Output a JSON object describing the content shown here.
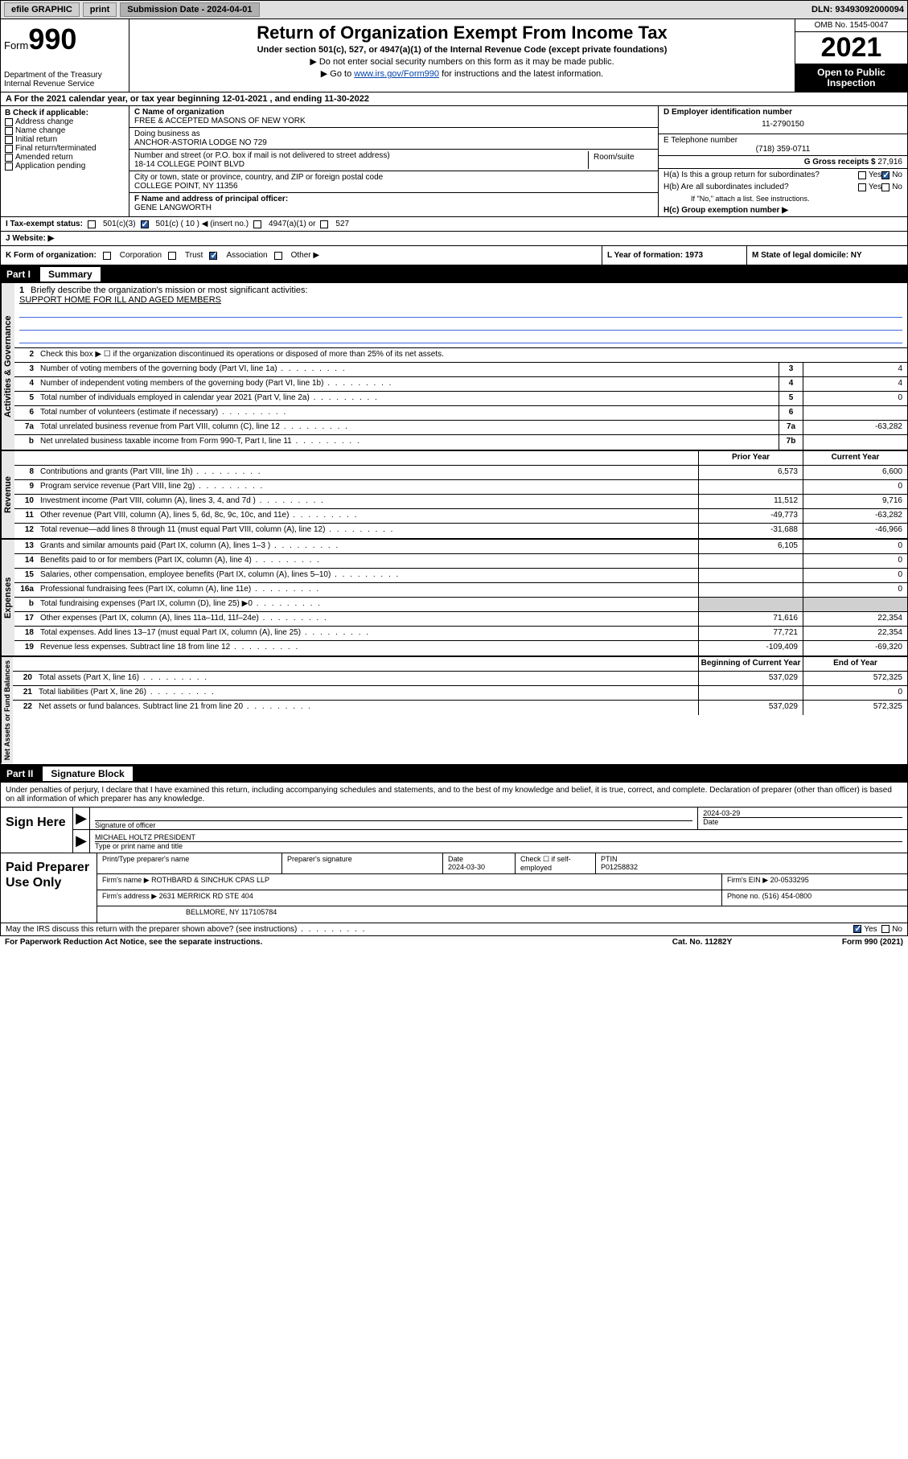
{
  "topbar": {
    "efile": "efile GRAPHIC",
    "print": "print",
    "submission_label": "Submission Date - 2024-04-01",
    "dln": "DLN: 93493092000094"
  },
  "header": {
    "form_label": "Form",
    "form_number": "990",
    "dept": "Department of the Treasury",
    "irs": "Internal Revenue Service",
    "title": "Return of Organization Exempt From Income Tax",
    "subtitle": "Under section 501(c), 527, or 4947(a)(1) of the Internal Revenue Code (except private foundations)",
    "note1": "▶ Do not enter social security numbers on this form as it may be made public.",
    "note2_pre": "▶ Go to ",
    "note2_link": "www.irs.gov/Form990",
    "note2_post": " for instructions and the latest information.",
    "omb": "OMB No. 1545-0047",
    "year": "2021",
    "open": "Open to Public Inspection"
  },
  "row_a": "A For the 2021 calendar year, or tax year beginning 12-01-2021   , and ending 11-30-2022",
  "col_b": {
    "label": "B Check if applicable:",
    "opts": [
      "Address change",
      "Name change",
      "Initial return",
      "Final return/terminated",
      "Amended return",
      "Application pending"
    ]
  },
  "col_c": {
    "name_label": "C Name of organization",
    "name": "FREE & ACCEPTED MASONS OF NEW YORK",
    "dba_label": "Doing business as",
    "dba": "ANCHOR-ASTORIA LODGE NO 729",
    "street_label": "Number and street (or P.O. box if mail is not delivered to street address)",
    "room_label": "Room/suite",
    "street": "18-14 COLLEGE POINT BLVD",
    "city_label": "City or town, state or province, country, and ZIP or foreign postal code",
    "city": "COLLEGE POINT, NY  11356"
  },
  "col_d": {
    "ein_label": "D Employer identification number",
    "ein": "11-2790150",
    "phone_label": "E Telephone number",
    "phone": "(718) 359-0711",
    "gross_label": "G Gross receipts $",
    "gross": "27,916"
  },
  "row_f": {
    "label": "F  Name and address of principal officer:",
    "name": "GENE LANGWORTH"
  },
  "row_h": {
    "ha": "H(a)  Is this a group return for subordinates?",
    "hb": "H(b)  Are all subordinates included?",
    "hb_note": "If \"No,\" attach a list. See instructions.",
    "hc": "H(c)  Group exemption number ▶",
    "yes": "Yes",
    "no": "No"
  },
  "row_i": {
    "label": "I    Tax-exempt status:",
    "opt1": "501(c)(3)",
    "opt2": "501(c) ( 10 ) ◀ (insert no.)",
    "opt3": "4947(a)(1) or",
    "opt4": "527"
  },
  "row_j": {
    "label": "J   Website: ▶"
  },
  "row_k": {
    "label": "K Form of organization:",
    "corp": "Corporation",
    "trust": "Trust",
    "assoc": "Association",
    "other": "Other ▶",
    "year_label": "L Year of formation: 1973",
    "state_label": "M State of legal domicile: NY"
  },
  "part1": {
    "label": "Part I",
    "title": "Summary"
  },
  "summary": {
    "sections": {
      "gov": "Activities & Governance",
      "rev": "Revenue",
      "exp": "Expenses",
      "net": "Net Assets or Fund Balances"
    },
    "q1": "Briefly describe the organization's mission or most significant activities:",
    "mission": "SUPPORT HOME FOR ILL AND AGED MEMBERS",
    "q2": "Check this box ▶ ☐  if the organization discontinued its operations or disposed of more than 25% of its net assets.",
    "rows": [
      {
        "n": "3",
        "t": "Number of voting members of the governing body (Part VI, line 1a)",
        "box": "3",
        "v": "4"
      },
      {
        "n": "4",
        "t": "Number of independent voting members of the governing body (Part VI, line 1b)",
        "box": "4",
        "v": "4"
      },
      {
        "n": "5",
        "t": "Total number of individuals employed in calendar year 2021 (Part V, line 2a)",
        "box": "5",
        "v": "0"
      },
      {
        "n": "6",
        "t": "Total number of volunteers (estimate if necessary)",
        "box": "6",
        "v": ""
      },
      {
        "n": "7a",
        "t": "Total unrelated business revenue from Part VIII, column (C), line 12",
        "box": "7a",
        "v": "-63,282"
      },
      {
        "n": "b",
        "t": "Net unrelated business taxable income from Form 990-T, Part I, line 11",
        "box": "7b",
        "v": ""
      }
    ],
    "col_headers": {
      "prior": "Prior Year",
      "current": "Current Year",
      "begin": "Beginning of Current Year",
      "end": "End of Year"
    },
    "rev_rows": [
      {
        "n": "8",
        "t": "Contributions and grants (Part VIII, line 1h)",
        "p": "6,573",
        "c": "6,600"
      },
      {
        "n": "9",
        "t": "Program service revenue (Part VIII, line 2g)",
        "p": "",
        "c": "0"
      },
      {
        "n": "10",
        "t": "Investment income (Part VIII, column (A), lines 3, 4, and 7d )",
        "p": "11,512",
        "c": "9,716"
      },
      {
        "n": "11",
        "t": "Other revenue (Part VIII, column (A), lines 5, 6d, 8c, 9c, 10c, and 11e)",
        "p": "-49,773",
        "c": "-63,282"
      },
      {
        "n": "12",
        "t": "Total revenue—add lines 8 through 11 (must equal Part VIII, column (A), line 12)",
        "p": "-31,688",
        "c": "-46,966"
      }
    ],
    "exp_rows": [
      {
        "n": "13",
        "t": "Grants and similar amounts paid (Part IX, column (A), lines 1–3 )",
        "p": "6,105",
        "c": "0"
      },
      {
        "n": "14",
        "t": "Benefits paid to or for members (Part IX, column (A), line 4)",
        "p": "",
        "c": "0"
      },
      {
        "n": "15",
        "t": "Salaries, other compensation, employee benefits (Part IX, column (A), lines 5–10)",
        "p": "",
        "c": "0"
      },
      {
        "n": "16a",
        "t": "Professional fundraising fees (Part IX, column (A), line 11e)",
        "p": "",
        "c": "0"
      },
      {
        "n": "b",
        "t": "Total fundraising expenses (Part IX, column (D), line 25) ▶0",
        "p": "GRAY",
        "c": "GRAY"
      },
      {
        "n": "17",
        "t": "Other expenses (Part IX, column (A), lines 11a–11d, 11f–24e)",
        "p": "71,616",
        "c": "22,354"
      },
      {
        "n": "18",
        "t": "Total expenses. Add lines 13–17 (must equal Part IX, column (A), line 25)",
        "p": "77,721",
        "c": "22,354"
      },
      {
        "n": "19",
        "t": "Revenue less expenses. Subtract line 18 from line 12",
        "p": "-109,409",
        "c": "-69,320"
      }
    ],
    "net_rows": [
      {
        "n": "20",
        "t": "Total assets (Part X, line 16)",
        "p": "537,029",
        "c": "572,325"
      },
      {
        "n": "21",
        "t": "Total liabilities (Part X, line 26)",
        "p": "",
        "c": "0"
      },
      {
        "n": "22",
        "t": "Net assets or fund balances. Subtract line 21 from line 20",
        "p": "537,029",
        "c": "572,325"
      }
    ]
  },
  "part2": {
    "label": "Part II",
    "title": "Signature Block"
  },
  "sig": {
    "declaration": "Under penalties of perjury, I declare that I have examined this return, including accompanying schedules and statements, and to the best of my knowledge and belief, it is true, correct, and complete. Declaration of preparer (other than officer) is based on all information of which preparer has any knowledge.",
    "sign_here": "Sign Here",
    "sig_officer": "Signature of officer",
    "date": "Date",
    "date_val": "2024-03-29",
    "name_title": "MICHAEL HOLTZ  PRESIDENT",
    "name_title_label": "Type or print name and title"
  },
  "preparer": {
    "label": "Paid Preparer Use Only",
    "h1": "Print/Type preparer's name",
    "h2": "Preparer's signature",
    "h3_label": "Date",
    "h3": "2024-03-30",
    "h4_label": "Check ☐ if self-employed",
    "h5_label": "PTIN",
    "h5": "P01258832",
    "firm_name_label": "Firm's name    ▶",
    "firm_name": "ROTHBARD & SINCHUK CPAS LLP",
    "firm_ein_label": "Firm's EIN ▶",
    "firm_ein": "20-0533295",
    "firm_addr_label": "Firm's address ▶",
    "firm_addr1": "2631 MERRICK RD STE 404",
    "firm_addr2": "BELLMORE, NY  117105784",
    "phone_label": "Phone no.",
    "phone": "(516) 454-0800"
  },
  "footer": {
    "discuss": "May the IRS discuss this return with the preparer shown above? (see instructions)",
    "yes": "Yes",
    "no": "No",
    "paperwork": "For Paperwork Reduction Act Notice, see the separate instructions.",
    "cat": "Cat. No. 11282Y",
    "form": "Form 990 (2021)"
  }
}
